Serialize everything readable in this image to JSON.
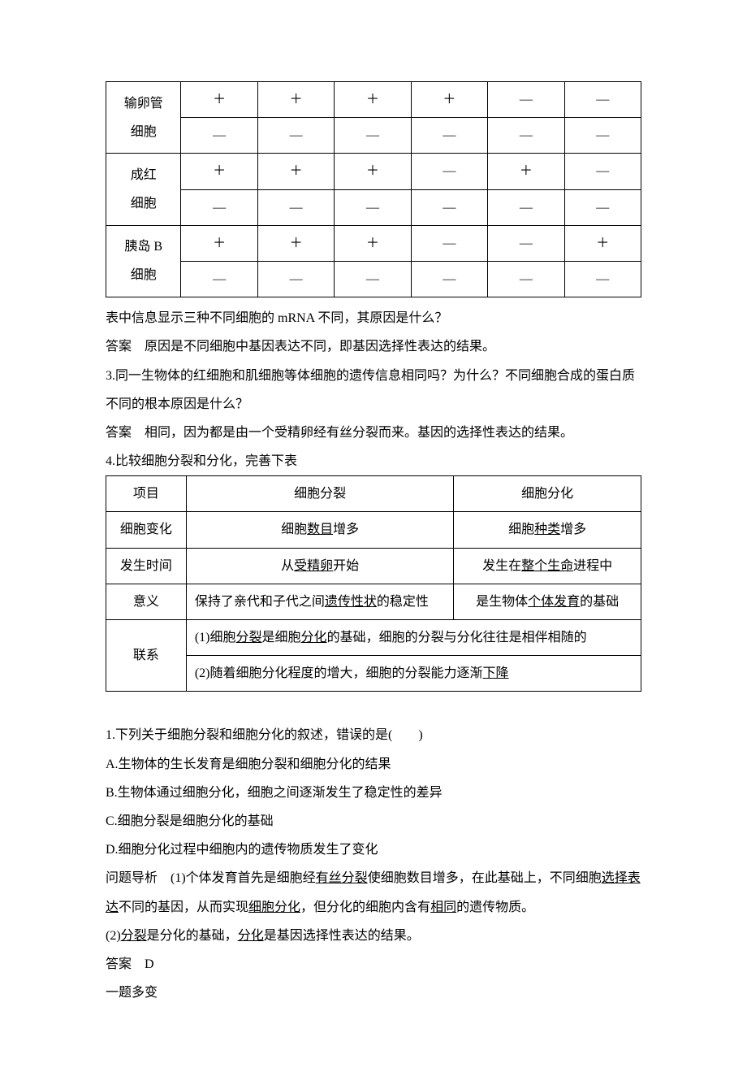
{
  "table1": {
    "rows": [
      {
        "label_line1": "输卵管",
        "label_line2": "细胞",
        "c1_1": "＋",
        "c1_2": "—",
        "c2_1": "＋",
        "c2_2": "—",
        "c3_1": "＋",
        "c3_2": "—",
        "c4_1": "＋",
        "c4_2": "—",
        "c5_1": "—",
        "c5_2": "—",
        "c6_1": "—",
        "c6_2": "—"
      },
      {
        "label_line1": "成红",
        "label_line2": "细胞",
        "c1_1": "＋",
        "c1_2": "—",
        "c2_1": "＋",
        "c2_2": "—",
        "c3_1": "＋",
        "c3_2": "—",
        "c4_1": "—",
        "c4_2": "—",
        "c5_1": "＋",
        "c5_2": "—",
        "c6_1": "—",
        "c6_2": "—"
      },
      {
        "label_line1": "胰岛 B",
        "label_line2": "细胞",
        "c1_1": "＋",
        "c1_2": "—",
        "c2_1": "＋",
        "c2_2": "—",
        "c3_1": "＋",
        "c3_2": "—",
        "c4_1": "—",
        "c4_2": "—",
        "c5_1": "—",
        "c5_2": "—",
        "c6_1": "＋",
        "c6_2": "—"
      }
    ]
  },
  "body": {
    "p1": "表中信息显示三种不同细胞的 mRNA 不同，其原因是什么？",
    "p2": "答案　原因是不同细胞中基因表达不同，即基因选择性表达的结果。",
    "p3": "3.同一生物体的红细胞和肌细胞等体细胞的遗传信息相同吗？为什么？不同细胞合成的蛋白质不同的根本原因是什么？",
    "p4": "答案　相同，因为都是由一个受精卵经有丝分裂而来。基因的选择性表达的结果。",
    "p5": "4.比较细胞分裂和分化，完善下表"
  },
  "table2": {
    "header": {
      "c1": "项目",
      "c2": "细胞分裂",
      "c3": "细胞分化"
    },
    "row1": {
      "c1": "细胞变化",
      "c2_pre": "细胞",
      "c2_u": "数目",
      "c2_post": "增多",
      "c3_pre": "细胞",
      "c3_u": "种类",
      "c3_post": "增多"
    },
    "row2": {
      "c1": "发生时间",
      "c2_pre": "从",
      "c2_u": "受精卵",
      "c2_post": "开始",
      "c3_pre": "发生在",
      "c3_u": "整个生命",
      "c3_post": "进程中"
    },
    "row3": {
      "c1": "意义",
      "c2_pre": "保持了亲代和子代之间",
      "c2_u": "遗传性状",
      "c2_post": "的稳定性",
      "c3_pre": "是生物体",
      "c3_u": "个体发育",
      "c3_post": "的基础"
    },
    "row4": {
      "c1": "联系",
      "line1_pre": "(1)细胞",
      "line1_u1": "分裂",
      "line1_mid1": "是细胞",
      "line1_u2": "分化",
      "line1_post": "的基础，细胞的分裂与分化往往是相伴相随的",
      "line2_pre": "(2)随着细胞分化程度的增大，细胞的分裂能力逐渐",
      "line2_u": "下降"
    }
  },
  "questions": {
    "q1": "1.下列关于细胞分裂和细胞分化的叙述，错误的是(　　)",
    "optA": "A.生物体的生长发育是细胞分裂和细胞分化的结果",
    "optB": "B.生物体通过细胞分化，细胞之间逐渐发生了稳定性的差异",
    "optC": "C.细胞分裂是细胞分化的基础",
    "optD": "D.细胞分化过程中细胞内的遗传物质发生了变化",
    "analysis1_pre": "问题导析　(1)个体发育首先是细胞经",
    "analysis1_u1": "有丝分裂",
    "analysis1_mid1": "使细胞数目增多，在此基础上，不同细胞",
    "analysis1_u2": "选择表达",
    "analysis1_mid2": "不同的基因，从而实现",
    "analysis1_u3": "细胞分化",
    "analysis1_mid3": "，但分化的细胞内含有",
    "analysis1_u4": "相同",
    "analysis1_post": "的遗传物质。",
    "analysis2_pre": "(2)",
    "analysis2_u1": "分裂",
    "analysis2_mid": "是分化的基础，",
    "analysis2_u2": "分化",
    "analysis2_post": "是基因选择性表达的结果。",
    "answer": "答案　D",
    "variation": "一题多变"
  }
}
